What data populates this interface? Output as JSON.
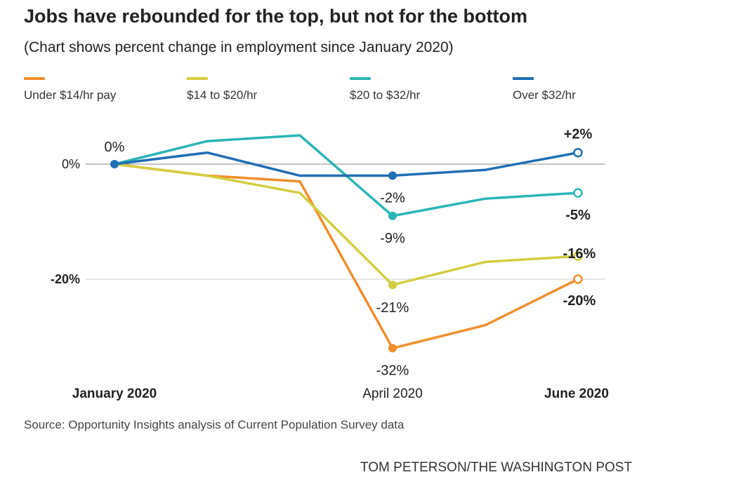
{
  "title": "Jobs have rebounded for the top, but not for the bottom",
  "subtitle": "(Chart shows percent change in employment since January 2020)",
  "source": "Source: Opportunity Insights analysis of Current Population Survey data",
  "credit": "TOM PETERSON/THE WASHINGTON POST",
  "chart_data": {
    "type": "line",
    "title": "Jobs have rebounded for the top, but not for the bottom",
    "subtitle": "(Chart shows percent change in employment since January 2020)",
    "x": [
      "2020-01",
      "2020-02",
      "2020-03",
      "2020-04",
      "2020-05",
      "2020-06"
    ],
    "xticks": [
      {
        "x": "2020-01",
        "label": "January 2020",
        "bold": true
      },
      {
        "x": "2020-04",
        "label": "April 2020",
        "bold": false
      },
      {
        "x": "2020-06",
        "label": "June 2020",
        "bold": true
      }
    ],
    "ylim": [
      -33,
      5
    ],
    "yticks": [
      {
        "value": 0,
        "label": "0%",
        "bold": false
      },
      {
        "value": -20,
        "label": "-20%",
        "bold": true
      }
    ],
    "grid": "horizontal at 0 and -20",
    "legend_position": "top",
    "series": [
      {
        "name": "Under $14/hr pay",
        "color": "#f28e2b",
        "x": [
          "2020-01",
          "2020-02",
          "2020-03",
          "2020-04",
          "2020-05",
          "2020-06"
        ],
        "values": [
          0,
          -2,
          -3,
          -32,
          -28,
          -20
        ]
      },
      {
        "name": "$14 to $20/hr",
        "color": "#d4cd40",
        "x": [
          "2020-01",
          "2020-02",
          "2020-03",
          "2020-04",
          "2020-05",
          "2020-06"
        ],
        "values": [
          0,
          -2,
          -5,
          -21,
          -17,
          -16
        ]
      },
      {
        "name": "$20 to $32/hr",
        "color": "#2ab5b5",
        "x": [
          "2020-01",
          "2020-02",
          "2020-03",
          "2020-04",
          "2020-05",
          "2020-06"
        ],
        "values": [
          0,
          4,
          5,
          -9,
          -6,
          -5
        ]
      },
      {
        "name": "Over $32/hr",
        "color": "#1f6fb4",
        "x": [
          "2020-01",
          "2020-02",
          "2020-03",
          "2020-04",
          "2020-05",
          "2020-06"
        ],
        "values": [
          0,
          2,
          -2,
          -2,
          -1,
          2
        ]
      }
    ],
    "annotations": [
      {
        "text": "0%",
        "x": "2020-01",
        "value": 0,
        "series": "Over $32/hr",
        "bold": false
      },
      {
        "text": "-2%",
        "x": "2020-04",
        "value": -2,
        "series": "Over $32/hr",
        "bold": false
      },
      {
        "text": "-9%",
        "x": "2020-04",
        "value": -9,
        "series": "$20 to $32/hr",
        "bold": false
      },
      {
        "text": "-21%",
        "x": "2020-04",
        "value": -21,
        "series": "$14 to $20/hr",
        "bold": false
      },
      {
        "text": "-32%",
        "x": "2020-04",
        "value": -32,
        "series": "Under $14/hr pay",
        "bold": false
      },
      {
        "text": "+2%",
        "x": "2020-06",
        "value": 2,
        "series": "Over $32/hr",
        "bold": true
      },
      {
        "text": "-5%",
        "x": "2020-06",
        "value": -5,
        "series": "$20 to $32/hr",
        "bold": true
      },
      {
        "text": "-16%",
        "x": "2020-06",
        "value": -16,
        "series": "$14 to $20/hr",
        "bold": true
      },
      {
        "text": "-20%",
        "x": "2020-06",
        "value": -20,
        "series": "Under $14/hr pay",
        "bold": true
      }
    ]
  }
}
